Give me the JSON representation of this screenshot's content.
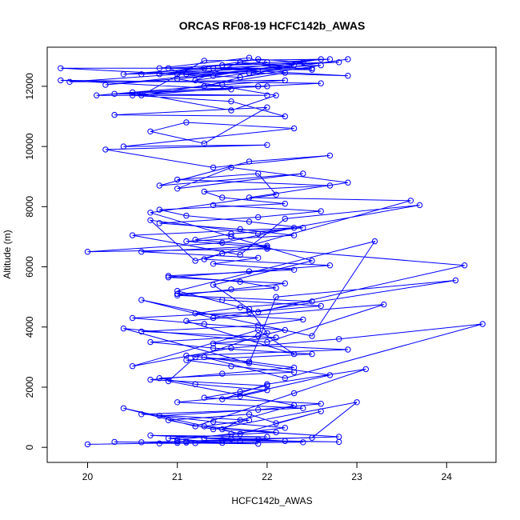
{
  "chart_data": {
    "type": "line",
    "title": "ORCAS RF08-19 HCFC142b_AWAS",
    "xlabel": "HCFC142b_AWAS",
    "ylabel": "Altitude (m)",
    "xlim": [
      19.55,
      24.55
    ],
    "ylim": [
      -500,
      13300
    ],
    "xticks": [
      20,
      21,
      22,
      23,
      24
    ],
    "yticks": [
      0,
      2000,
      4000,
      6000,
      8000,
      10000,
      12000
    ],
    "xtick_labels": [
      "20",
      "21",
      "22",
      "23",
      "24"
    ],
    "ytick_labels": [
      "0",
      "2000",
      "4000",
      "6000",
      "8000",
      "10000",
      "12000"
    ],
    "grid": false,
    "series_color": "#0000ff",
    "marker": "open-circle",
    "series": [
      {
        "x": [
          20.0,
          21.0,
          21.9,
          20.3,
          21.1,
          22.4,
          21.2,
          20.8,
          21.7,
          22.8,
          21.5,
          21.0,
          20.6,
          21.9,
          22.2,
          21.3,
          22.0,
          20.7,
          21.6,
          22.5,
          23.0,
          21.4,
          20.9,
          21.8,
          22.1,
          22.6,
          21.7,
          20.4,
          21.2,
          22.3,
          23.1,
          22.0,
          21.5,
          22.7,
          21.3,
          22.2,
          24.4,
          22.8,
          21.6,
          20.5,
          21.9,
          22.3,
          21.1,
          23.3,
          22.0,
          20.4,
          21.8,
          22.1,
          24.1,
          21.4,
          20.6,
          22.5,
          23.2,
          21.0,
          21.9,
          24.2,
          22.0,
          20.0,
          21.5,
          22.3,
          20.5,
          21.7,
          22.2,
          23.7,
          21.9,
          20.7,
          21.2,
          23.6,
          21.8,
          22.9,
          21.6,
          21.0,
          22.4,
          20.8,
          21.8,
          22.7,
          21.4,
          20.2,
          22.0,
          20.4,
          22.3,
          21.1,
          20.7,
          21.3,
          22.0,
          20.3,
          22.2,
          21.6,
          20.5,
          21.9,
          22.6,
          19.7,
          21.6,
          20.3,
          22.0,
          20.1,
          21.5,
          22.2,
          19.8,
          21.0,
          21.8,
          22.9,
          21.3,
          20.4,
          21.9,
          22.5,
          19.7,
          21.7,
          22.6,
          20.6,
          21.5,
          22.8,
          21.4,
          20.8,
          21.9,
          22.4,
          21.3,
          22.0,
          20.5,
          21.6,
          22.1,
          21.0,
          22.3,
          20.2,
          21.4,
          22.6,
          21.1,
          20.9,
          22.0,
          21.5,
          22.7,
          21.3,
          20.6,
          22.2,
          21.8,
          20.8,
          22.5,
          21.7,
          21.2,
          22.9
        ],
        "y": [
          100,
          150,
          120,
          180,
          160,
          170,
          140,
          130,
          220,
          180,
          250,
          200,
          170,
          260,
          210,
          300,
          350,
          400,
          280,
          320,
          1500,
          600,
          900,
          1100,
          800,
          1200,
          450,
          1300,
          700,
          1800,
          2600,
          2100,
          1600,
          2400,
          3000,
          2300,
          4100,
          3600,
          3300,
          2700,
          3900,
          3100,
          4200,
          4750,
          3500,
          3950,
          2800,
          5000,
          5550,
          4300,
          4900,
          3700,
          6850,
          5200,
          4500,
          6050,
          6600,
          6500,
          6800,
          7300,
          7050,
          6400,
          7600,
          8050,
          7100,
          7550,
          6200,
          8200,
          8300,
          8800,
          9300,
          8600,
          9100,
          8700,
          9500,
          9700,
          9300,
          9900,
          10050,
          10000,
          10600,
          10800,
          10500,
          10100,
          11300,
          11050,
          11000,
          11500,
          11700,
          12000,
          12100,
          12200,
          11900,
          11750,
          11700,
          11700,
          12050,
          12200,
          12150,
          12400,
          12450,
          12350,
          12600,
          12400,
          12500,
          12600,
          12600,
          12300,
          12700,
          12400,
          12700,
          12800,
          12600,
          12400,
          12900,
          12800,
          12000,
          12000,
          11800,
          11200,
          11700,
          12250,
          12700,
          12050,
          12350,
          12900,
          12400,
          12600,
          12800,
          12700,
          12900,
          12850,
          11700,
          12450,
          12950,
          12600,
          12550,
          12800,
          12200,
          12900
        ]
      },
      {
        "x": [
          21.5,
          20.9,
          22.1,
          21.3,
          21.8,
          20.6,
          22.4,
          21.0,
          21.7,
          22.0,
          21.2,
          20.8,
          22.3,
          21.6,
          21.1,
          22.5,
          21.4,
          20.7,
          21.9,
          22.2,
          21.3,
          20.5,
          21.8,
          22.6,
          21.5,
          21.0,
          22.1,
          21.7,
          20.9,
          22.3,
          21.4,
          21.9,
          20.6,
          22.0,
          21.2,
          21.6,
          22.4,
          21.8,
          21.1,
          20.8,
          22.2,
          21.5,
          21.3,
          22.7,
          21.0,
          21.9,
          22.1,
          20.7,
          21.6,
          22.5,
          21.4,
          21.8,
          22.0,
          21.2,
          20.9,
          22.3,
          21.7,
          21.5,
          22.8,
          21.1
        ],
        "y": [
          150,
          300,
          500,
          700,
          900,
          1100,
          1300,
          1500,
          1700,
          1900,
          2100,
          2300,
          2500,
          2700,
          2900,
          3100,
          3300,
          3500,
          3700,
          3900,
          4100,
          4300,
          4500,
          4700,
          4900,
          5100,
          5300,
          5500,
          5700,
          5900,
          6100,
          6300,
          6500,
          6700,
          6900,
          7100,
          7300,
          7500,
          7700,
          7900,
          8100,
          8300,
          8500,
          8700,
          8900,
          9100,
          8400,
          7800,
          7000,
          6200,
          5400,
          4600,
          3800,
          3000,
          2200,
          1400,
          900,
          600,
          350,
          200
        ]
      },
      {
        "x": [
          21.0,
          21.6,
          22.2,
          21.4,
          20.8,
          21.9,
          22.6,
          21.3,
          21.7,
          22.0,
          20.7,
          21.5,
          22.3,
          21.8,
          21.1,
          22.9,
          21.4,
          22.1,
          20.6,
          21.9,
          22.4,
          21.2,
          21.7,
          22.5,
          21.0,
          21.6,
          22.2,
          20.9,
          21.8,
          22.7,
          21.3,
          21.5,
          22.0,
          21.1,
          22.3,
          21.7,
          20.8,
          21.9,
          22.6,
          21.4
        ],
        "y": [
          250,
          450,
          650,
          850,
          1050,
          1250,
          1450,
          1650,
          1850,
          2050,
          2250,
          2450,
          2650,
          2850,
          3050,
          3250,
          3450,
          3650,
          3850,
          4050,
          4250,
          4450,
          4650,
          4850,
          5050,
          5250,
          5450,
          5650,
          5850,
          6050,
          6250,
          6450,
          6650,
          6850,
          7050,
          7250,
          7450,
          7650,
          7850,
          8050
        ]
      }
    ]
  }
}
